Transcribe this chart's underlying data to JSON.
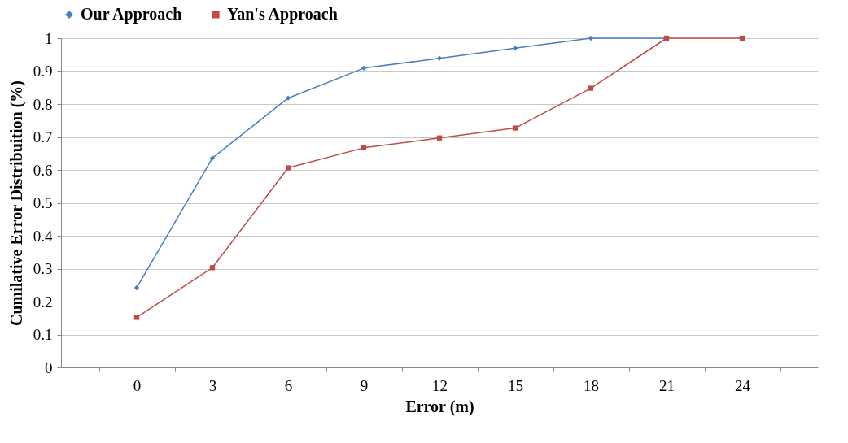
{
  "chart_data": {
    "type": "line",
    "xlabel": "Error (m)",
    "ylabel": "Cumilative Error Distribuition (%)",
    "categories": [
      "0",
      "3",
      "6",
      "9",
      "12",
      "15",
      "18",
      "21",
      "24"
    ],
    "series": [
      {
        "name": "Our Approach",
        "color": "#4a7ebb",
        "marker": "diamond",
        "values": [
          0.242,
          0.636,
          0.818,
          0.909,
          0.939,
          0.97,
          1,
          1,
          null
        ]
      },
      {
        "name": "Yan's Approach",
        "color": "#be4b48",
        "marker": "square",
        "values": [
          0.152,
          0.303,
          0.606,
          0.667,
          0.697,
          0.727,
          0.848,
          1,
          1
        ]
      }
    ],
    "ylim": [
      0,
      1
    ],
    "yticks": [
      0,
      0.1,
      0.2,
      0.3,
      0.4,
      0.5,
      0.6,
      0.7,
      0.8,
      0.9,
      1
    ],
    "grid": "y",
    "legend": "top",
    "line_style": "solid"
  }
}
